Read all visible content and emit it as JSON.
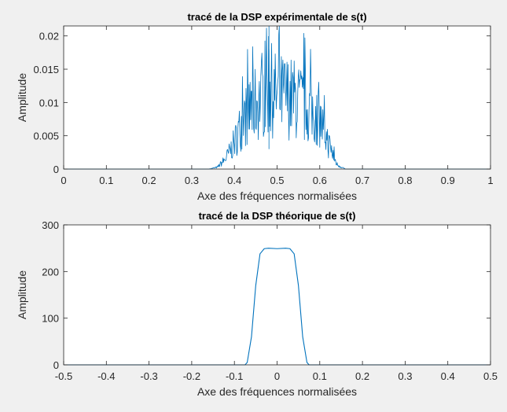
{
  "chart_data": [
    {
      "type": "line",
      "title": "tracé de la DSP expérimentale de s(t)",
      "xlabel": "Axe des fréquences normalisées",
      "ylabel": "Amplitude",
      "xlim": [
        0,
        1
      ],
      "ylim": [
        0,
        0.0215
      ],
      "xticks": [
        "0",
        "0.1",
        "0.2",
        "0.3",
        "0.4",
        "0.5",
        "0.6",
        "0.7",
        "0.8",
        "0.9",
        "1"
      ],
      "yticks": [
        "0",
        "0.005",
        "0.01",
        "0.015",
        "0.02"
      ],
      "line_color": "#0072bd",
      "grid": false,
      "series": [
        {
          "x": [
            0,
            0.1,
            0.2,
            0.3,
            0.34,
            0.36,
            0.38,
            0.4,
            0.42,
            0.44,
            0.46,
            0.48,
            0.5,
            0.52,
            0.54,
            0.56,
            0.58,
            0.6,
            0.62,
            0.64,
            0.66,
            0.7,
            0.8,
            0.9,
            1
          ],
          "y": [
            0,
            0,
            0,
            0,
            0,
            0.0003,
            0.0018,
            0.0045,
            0.0085,
            0.0105,
            0.012,
            0.0135,
            0.0125,
            0.0125,
            0.012,
            0.011,
            0.01,
            0.0085,
            0.0045,
            0.0008,
            0,
            0,
            0,
            0,
            0
          ]
        }
      ]
    },
    {
      "type": "line",
      "title": "tracé de la DSP théorique de s(t)",
      "xlabel": "Axe des fréquences normalisées",
      "ylabel": "Amplitude",
      "xlim": [
        -0.5,
        0.5
      ],
      "ylim": [
        0,
        300
      ],
      "xticks": [
        "-0.5",
        "-0.4",
        "-0.3",
        "-0.2",
        "-0.1",
        "0",
        "0.1",
        "0.2",
        "0.3",
        "0.4",
        "0.5"
      ],
      "yticks": [
        "0",
        "100",
        "200",
        "300"
      ],
      "line_color": "#0072bd",
      "grid": false,
      "series": [
        {
          "x": [
            -0.5,
            -0.075,
            -0.07,
            -0.06,
            -0.05,
            -0.04,
            -0.03,
            -0.02,
            0,
            0.02,
            0.03,
            0.04,
            0.05,
            0.06,
            0.07,
            0.075,
            0.5
          ],
          "y": [
            0,
            0,
            5,
            60,
            170,
            238,
            249,
            250,
            249,
            250,
            249,
            238,
            170,
            60,
            5,
            0,
            0
          ]
        }
      ]
    }
  ]
}
